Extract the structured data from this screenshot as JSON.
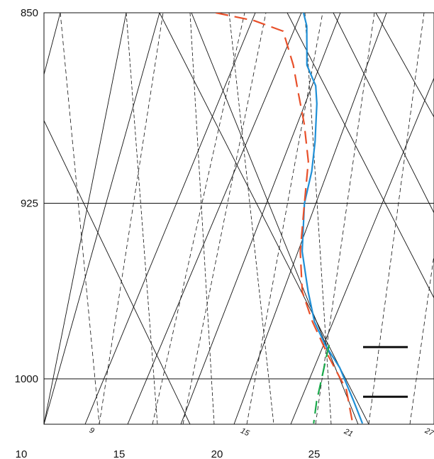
{
  "chart_data": {
    "type": "line",
    "title": "",
    "xlabel": "",
    "ylabel": "",
    "y_axis": {
      "ticks": [
        850,
        925,
        1000
      ],
      "range": [
        1020,
        850
      ],
      "scale": "log"
    },
    "x_axis": {
      "ticks": [
        10,
        15,
        20,
        25
      ],
      "range": [
        10,
        30
      ]
    },
    "mixing_ratio_labels": [
      "9",
      "15",
      "21",
      "27"
    ],
    "grid": true,
    "series": [
      {
        "color": "#1f8fd6",
        "style": "solid",
        "points": [
          {
            "p": 850,
            "t": 23.5
          },
          {
            "p": 855,
            "t": 23.7
          },
          {
            "p": 870,
            "t": 23.8
          },
          {
            "p": 878,
            "t": 24.3
          },
          {
            "p": 885,
            "t": 24.4
          },
          {
            "p": 900,
            "t": 24.4
          },
          {
            "p": 912,
            "t": 24.3
          },
          {
            "p": 925,
            "t": 24.0
          },
          {
            "p": 945,
            "t": 24.0
          },
          {
            "p": 962,
            "t": 24.4
          },
          {
            "p": 975,
            "t": 24.8
          },
          {
            "p": 985,
            "t": 25.4
          },
          {
            "p": 995,
            "t": 26.2
          },
          {
            "p": 1010,
            "t": 27.0
          },
          {
            "p": 1020,
            "t": 27.5
          }
        ]
      },
      {
        "color": "#e8502a",
        "style": "dashed",
        "points": [
          {
            "p": 850,
            "t": 19.0
          },
          {
            "p": 853,
            "t": 21.0
          },
          {
            "p": 857,
            "t": 22.5
          },
          {
            "p": 870,
            "t": 23.1
          },
          {
            "p": 880,
            "t": 23.4
          },
          {
            "p": 893,
            "t": 23.8
          },
          {
            "p": 908,
            "t": 24.1
          },
          {
            "p": 925,
            "t": 24.0
          },
          {
            "p": 945,
            "t": 23.9
          },
          {
            "p": 962,
            "t": 24.1
          },
          {
            "p": 975,
            "t": 24.7
          },
          {
            "p": 990,
            "t": 25.6
          },
          {
            "p": 1005,
            "t": 26.6
          },
          {
            "p": 1020,
            "t": 27.0
          }
        ]
      },
      {
        "color": "#19a84a",
        "style": "dashed",
        "points": [
          {
            "p": 985,
            "t": 25.6
          },
          {
            "p": 1000,
            "t": 25.3
          },
          {
            "p": 1010,
            "t": 25.1
          },
          {
            "p": 1020,
            "t": 25.0
          }
        ]
      }
    ],
    "wind_barbs": [
      {
        "p": 986
      },
      {
        "p": 1008
      }
    ],
    "background_lines": {
      "dry_adiabat_color": "#111111",
      "mixing_ratio_color": "#111111",
      "isotherm_color": "#111111"
    }
  }
}
